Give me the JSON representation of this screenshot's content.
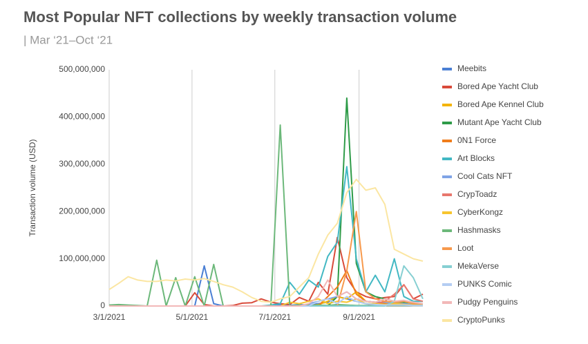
{
  "chart_data": {
    "type": "line",
    "title": "Most Popular NFT collections by weekly transaction volume",
    "subtitle": "| Mar ‘21–Oct ‘21",
    "y_label": "Transaction volume (USD)",
    "x": [
      "3/1/2021",
      "3/8/2021",
      "3/15/2021",
      "3/22/2021",
      "3/29/2021",
      "4/5/2021",
      "4/12/2021",
      "4/19/2021",
      "4/26/2021",
      "5/3/2021",
      "5/10/2021",
      "5/17/2021",
      "5/24/2021",
      "5/31/2021",
      "6/7/2021",
      "6/14/2021",
      "6/21/2021",
      "6/28/2021",
      "7/5/2021",
      "7/12/2021",
      "7/19/2021",
      "7/26/2021",
      "8/2/2021",
      "8/9/2021",
      "8/16/2021",
      "8/23/2021",
      "8/30/2021",
      "9/6/2021",
      "9/13/2021",
      "9/20/2021",
      "9/27/2021",
      "10/4/2021",
      "10/11/2021",
      "10/18/2021"
    ],
    "xlim": [
      "3/1/2021",
      "10/18/2021"
    ],
    "xticks": [
      "3/1/2021",
      "5/1/2021",
      "7/1/2021",
      "9/1/2021"
    ],
    "ylim": [
      0,
      500000000
    ],
    "yticks": [
      0,
      {
        "value": 100000000,
        "label": "100,000,000"
      },
      {
        "value": 200000000,
        "label": "200,000,000"
      },
      {
        "value": 300000000,
        "label": "300,000,000"
      },
      {
        "value": 400000000,
        "label": "400,000,000"
      },
      {
        "value": 500000000,
        "label": "500,000,000"
      }
    ],
    "grid": "x",
    "legend": "right",
    "series": [
      {
        "name": "Meebits",
        "color": "#4a7fd4",
        "values": [
          0,
          0,
          0,
          0,
          0,
          0,
          0,
          0,
          0,
          0,
          85000000,
          5000000,
          0,
          0,
          0,
          0,
          0,
          0,
          2000000,
          1000000,
          3000000,
          2000000,
          5000000,
          8000000,
          20000000,
          15000000,
          10000000,
          5000000,
          3000000,
          2000000,
          3000000,
          2000000,
          2000000,
          1000000
        ]
      },
      {
        "name": "Bored Ape Yacht Club",
        "color": "#d94a3a",
        "values": [
          0,
          0,
          0,
          0,
          0,
          0,
          0,
          0,
          0,
          28000000,
          3000000,
          0,
          0,
          1000000,
          6000000,
          7000000,
          15000000,
          8000000,
          5000000,
          3000000,
          18000000,
          10000000,
          50000000,
          25000000,
          145000000,
          60000000,
          30000000,
          20000000,
          15000000,
          18000000,
          20000000,
          45000000,
          15000000,
          25000000
        ]
      },
      {
        "name": "Bored Ape Kennel Club",
        "color": "#f4b400",
        "values": [
          0,
          0,
          0,
          0,
          0,
          0,
          0,
          0,
          0,
          0,
          0,
          0,
          0,
          0,
          0,
          0,
          0,
          0,
          0,
          0,
          0,
          0,
          3000000,
          10000000,
          20000000,
          15000000,
          30000000,
          10000000,
          8000000,
          5000000,
          8000000,
          5000000,
          3000000,
          3000000
        ]
      },
      {
        "name": "Mutant Ape Yacht Club",
        "color": "#2e9b48",
        "values": [
          0,
          0,
          0,
          0,
          0,
          0,
          0,
          0,
          0,
          0,
          0,
          0,
          0,
          0,
          0,
          0,
          0,
          0,
          0,
          0,
          0,
          0,
          0,
          0,
          20000000,
          440000000,
          90000000,
          30000000,
          20000000,
          15000000,
          10000000,
          8000000,
          6000000,
          5000000
        ]
      },
      {
        "name": "0N1 Force",
        "color": "#f07d1b",
        "values": [
          0,
          0,
          0,
          0,
          0,
          0,
          0,
          0,
          0,
          0,
          0,
          0,
          0,
          0,
          0,
          0,
          0,
          0,
          0,
          0,
          0,
          0,
          0,
          20000000,
          40000000,
          75000000,
          25000000,
          10000000,
          8000000,
          5000000,
          4000000,
          3000000,
          3000000,
          2000000
        ]
      },
      {
        "name": "Art Blocks",
        "color": "#42b8c3",
        "values": [
          0,
          0,
          0,
          0,
          0,
          0,
          0,
          0,
          0,
          0,
          0,
          0,
          0,
          0,
          0,
          0,
          0,
          2000000,
          5000000,
          50000000,
          25000000,
          55000000,
          40000000,
          105000000,
          135000000,
          295000000,
          100000000,
          30000000,
          65000000,
          30000000,
          100000000,
          20000000,
          10000000,
          10000000
        ]
      },
      {
        "name": "Cool Cats NFT",
        "color": "#7fa4e6",
        "values": [
          0,
          0,
          0,
          0,
          0,
          0,
          0,
          0,
          0,
          0,
          0,
          0,
          0,
          0,
          0,
          0,
          0,
          0,
          0,
          0,
          0,
          5000000,
          10000000,
          15000000,
          20000000,
          30000000,
          15000000,
          10000000,
          8000000,
          8000000,
          5000000,
          5000000,
          3000000,
          3000000
        ]
      },
      {
        "name": "CrypToadz",
        "color": "#e8776d",
        "values": [
          0,
          0,
          0,
          0,
          0,
          0,
          0,
          0,
          0,
          0,
          0,
          0,
          0,
          0,
          0,
          0,
          0,
          0,
          0,
          0,
          0,
          0,
          0,
          0,
          0,
          0,
          0,
          0,
          5000000,
          10000000,
          25000000,
          45000000,
          15000000,
          10000000
        ]
      },
      {
        "name": "CyberKongz",
        "color": "#f7c52e",
        "values": [
          0,
          0,
          0,
          0,
          0,
          0,
          0,
          0,
          0,
          0,
          0,
          0,
          0,
          0,
          0,
          0,
          0,
          0,
          0,
          8000000,
          5000000,
          10000000,
          15000000,
          5000000,
          10000000,
          8000000,
          15000000,
          5000000,
          5000000,
          3000000,
          5000000,
          3000000,
          2000000,
          2000000
        ]
      },
      {
        "name": "Hashmasks",
        "color": "#6cb87a",
        "values": [
          2000000,
          3000000,
          2000000,
          1000000,
          0,
          97000000,
          0,
          60000000,
          0,
          62000000,
          0,
          88000000,
          0,
          0,
          0,
          0,
          0,
          0,
          383000000,
          0,
          2000000,
          1000000,
          2000000,
          1000000,
          3000000,
          2000000,
          1000000,
          1000000,
          1000000,
          1000000,
          1000000,
          1000000,
          1000000,
          1000000
        ]
      },
      {
        "name": "Loot",
        "color": "#f7994c",
        "values": [
          0,
          0,
          0,
          0,
          0,
          0,
          0,
          0,
          0,
          0,
          0,
          0,
          0,
          0,
          0,
          0,
          0,
          0,
          0,
          0,
          0,
          0,
          0,
          0,
          0,
          75000000,
          200000000,
          30000000,
          15000000,
          10000000,
          8000000,
          10000000,
          5000000,
          5000000
        ]
      },
      {
        "name": "MekaVerse",
        "color": "#86cfd2",
        "values": [
          0,
          0,
          0,
          0,
          0,
          0,
          0,
          0,
          0,
          0,
          0,
          0,
          0,
          0,
          0,
          0,
          0,
          0,
          0,
          0,
          0,
          0,
          0,
          0,
          0,
          0,
          0,
          0,
          0,
          0,
          10000000,
          85000000,
          60000000,
          15000000
        ]
      },
      {
        "name": "PUNKS Comic",
        "color": "#b4cdf2",
        "values": [
          0,
          0,
          0,
          0,
          0,
          0,
          0,
          0,
          0,
          0,
          0,
          0,
          0,
          0,
          0,
          0,
          0,
          0,
          0,
          0,
          0,
          0,
          10000000,
          15000000,
          5000000,
          20000000,
          10000000,
          5000000,
          3000000,
          2000000,
          2000000,
          2000000,
          1000000,
          1000000
        ]
      },
      {
        "name": "Pudgy Penguins",
        "color": "#f2b8b8",
        "values": [
          0,
          0,
          0,
          0,
          0,
          0,
          0,
          0,
          0,
          0,
          0,
          0,
          0,
          0,
          0,
          0,
          0,
          0,
          0,
          0,
          0,
          5000000,
          20000000,
          55000000,
          20000000,
          30000000,
          15000000,
          10000000,
          8000000,
          15000000,
          10000000,
          12000000,
          8000000,
          5000000
        ]
      },
      {
        "name": "CryptoPunks",
        "color": "#fbe6a2",
        "values": [
          35000000,
          48000000,
          62000000,
          55000000,
          52000000,
          52000000,
          55000000,
          53000000,
          57000000,
          55000000,
          58000000,
          52000000,
          45000000,
          40000000,
          30000000,
          18000000,
          10000000,
          8000000,
          15000000,
          20000000,
          40000000,
          60000000,
          110000000,
          150000000,
          175000000,
          240000000,
          268000000,
          245000000,
          250000000,
          215000000,
          120000000,
          110000000,
          100000000,
          95000000
        ]
      }
    ]
  }
}
